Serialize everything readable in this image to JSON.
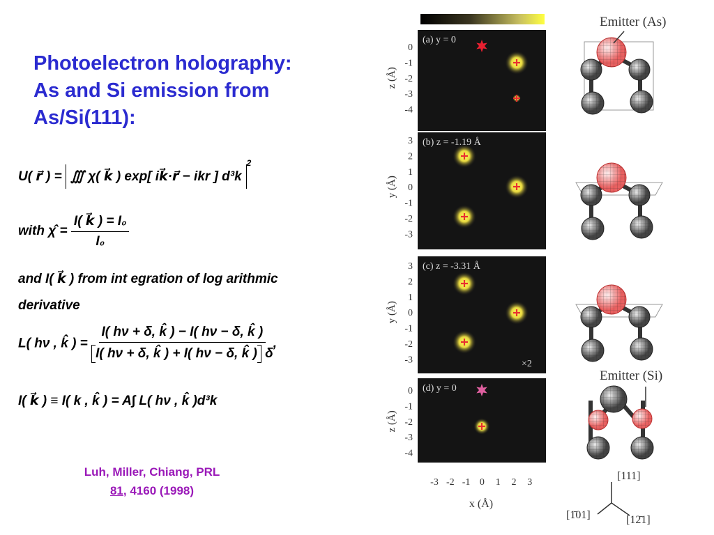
{
  "title": [
    "Photoelectron holography:",
    "As and Si emission from",
    "As/Si(111):"
  ],
  "equations": {
    "eq1": {
      "lhs": "U( r⃗ ) =",
      "body": "∭ χ( k⃗ ) exp[ ik⃗·r⃗ − ikr ] d³k",
      "power": "2"
    },
    "eq2": {
      "lead": "with",
      "lhs": "χ̂ =",
      "num": "I( k⃗ ) = I₀",
      "den": "I₀"
    },
    "text1": "and  I( k⃗ ) from int egration of  log arithmic",
    "text2": "derivative",
    "eq3": {
      "lhs": "L( hν , k̂ ) =",
      "num": "I( hν + δ, k̂ ) − I( hν − δ, k̂ )",
      "den": "I( hν + δ, k̂ ) + I( hν − δ, k̂ )",
      "den_tail": "δ",
      "tail": ","
    },
    "eq4": "I( k⃗ ) ≡ I( k , k̂ ) = A∫ L( hν , k̂ )d³k"
  },
  "citation": {
    "line1": "Luh, Miller, Chiang, PRL",
    "volume": "81",
    "rest": ", 4160 (1998)"
  },
  "figure": {
    "panels": [
      {
        "label": "(a) y = 0",
        "axis_label": "z (Å)",
        "yticks": [
          0,
          -1,
          -2,
          -3,
          -4
        ]
      },
      {
        "label": "(b) z = -1.19 Å",
        "axis_label": "y (Å)",
        "yticks": [
          3,
          2,
          1,
          0,
          -1,
          -2,
          -3
        ]
      },
      {
        "label": "(c) z = -3.31 Å",
        "axis_label": "y (Å)",
        "yticks": [
          3,
          2,
          1,
          0,
          -1,
          -2,
          -3
        ],
        "note": "×2"
      },
      {
        "label": "(d) y = 0",
        "axis_label": "z (Å)",
        "yticks": [
          0,
          -1,
          -2,
          -3,
          -4
        ]
      }
    ],
    "xticks": [
      -3,
      -2,
      -1,
      0,
      1,
      2,
      3
    ],
    "x_axis_label": "x (Å)",
    "emitter_as": "Emitter (As)",
    "emitter_si": "Emitter (Si)",
    "directions": [
      "[111]",
      "[1̄01]",
      "[12̄1]"
    ]
  }
}
